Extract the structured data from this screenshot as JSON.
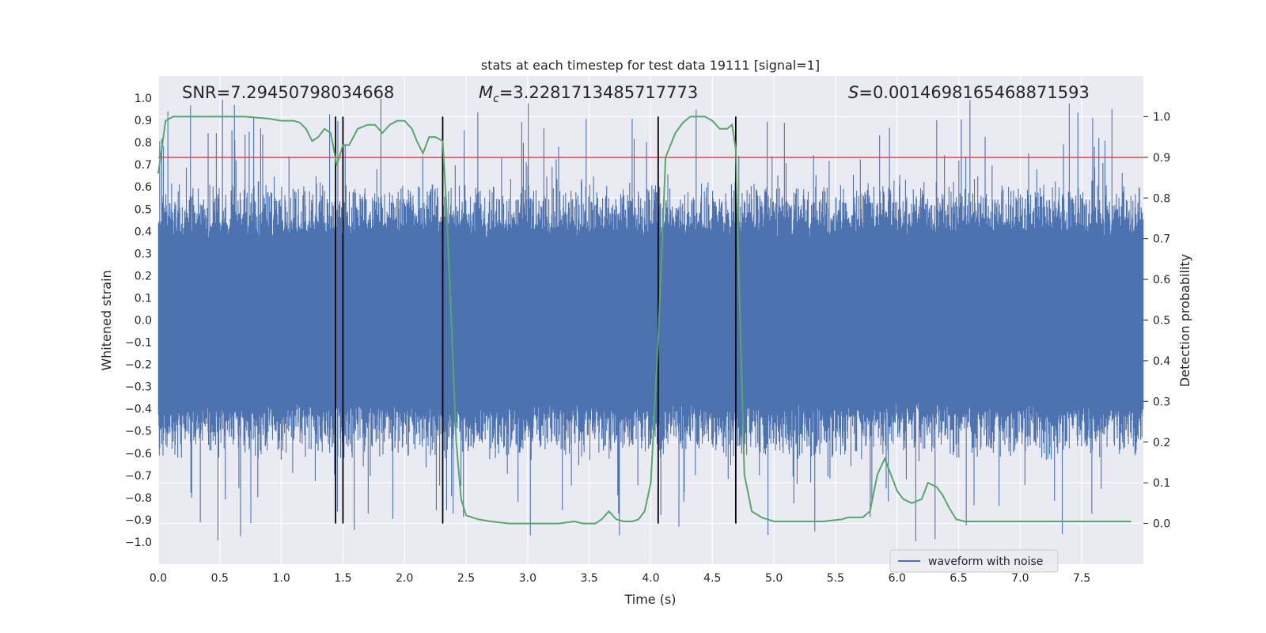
{
  "chart_data": {
    "type": "line",
    "title": "stats at each timestep for test data 19111 [signal=1]",
    "xlabel": "Time (s)",
    "ylabel_left": "Whitened strain",
    "ylabel_right": "Detection probability",
    "xlim": [
      0,
      8
    ],
    "ylim_left": [
      -1.1,
      1.1
    ],
    "ylim_right": [
      -0.1,
      1.1
    ],
    "grid": true,
    "legend": {
      "placement": "lower-right",
      "entries": [
        "waveform with noise"
      ]
    },
    "x_ticks": [
      "0.0",
      "0.5",
      "1.0",
      "1.5",
      "2.0",
      "2.5",
      "3.0",
      "3.5",
      "4.0",
      "4.5",
      "5.0",
      "5.5",
      "6.0",
      "6.5",
      "7.0",
      "7.5"
    ],
    "y_ticks_left": [
      "-1.0",
      "-0.9",
      "-0.8",
      "-0.7",
      "-0.6",
      "-0.5",
      "-0.4",
      "-0.3",
      "-0.2",
      "-0.1",
      "0.0",
      "0.1",
      "0.2",
      "0.3",
      "0.4",
      "0.5",
      "0.6",
      "0.7",
      "0.8",
      "0.9",
      "1.0"
    ],
    "y_ticks_right": [
      "0.0",
      "0.1",
      "0.2",
      "0.3",
      "0.4",
      "0.5",
      "0.6",
      "0.7",
      "0.8",
      "0.9",
      "1.0"
    ],
    "annotations": {
      "snr": "SNR=7.29450798034668",
      "mc_symbol": "M",
      "mc_sub": "c",
      "mc_value": "=3.2281713485717773",
      "s_symbol": "S",
      "s_value": "=0.0014698165468871593"
    },
    "threshold": 0.9,
    "vertical_lines": [
      1.44,
      1.5,
      2.31,
      4.06,
      4.69
    ],
    "series": [
      {
        "name": "waveform with noise",
        "style": "noise",
        "color": "#4c72b0",
        "description_envelope": {
          "core_abs": 0.4,
          "spike_max": 1.0
        }
      },
      {
        "style": "line",
        "axis": "right",
        "color": "#55a868",
        "x": [
          0.0,
          0.06,
          0.12,
          0.2,
          0.3,
          0.5,
          0.7,
          0.9,
          1.0,
          1.05,
          1.1,
          1.15,
          1.2,
          1.25,
          1.3,
          1.35,
          1.4,
          1.45,
          1.5,
          1.55,
          1.62,
          1.7,
          1.76,
          1.82,
          1.88,
          1.94,
          2.0,
          2.06,
          2.1,
          2.15,
          2.2,
          2.25,
          2.31,
          2.34,
          2.38,
          2.42,
          2.46,
          2.5,
          2.6,
          2.7,
          2.85,
          3.0,
          3.25,
          3.38,
          3.45,
          3.55,
          3.6,
          3.66,
          3.72,
          3.78,
          3.85,
          3.9,
          3.95,
          4.0,
          4.06,
          4.12,
          4.2,
          4.26,
          4.32,
          4.38,
          4.44,
          4.5,
          4.56,
          4.62,
          4.66,
          4.69,
          4.72,
          4.76,
          4.82,
          4.9,
          5.0,
          5.25,
          5.4,
          5.55,
          5.6,
          5.65,
          5.72,
          5.78,
          5.84,
          5.9,
          5.95,
          6.0,
          6.05,
          6.12,
          6.2,
          6.25,
          6.32,
          6.37,
          6.42,
          6.48,
          6.55,
          6.65,
          6.8,
          7.0,
          7.3,
          7.6,
          7.9
        ],
        "values": [
          0.86,
          0.99,
          1.0,
          1.0,
          1.0,
          1.0,
          1.0,
          0.995,
          0.99,
          0.99,
          0.99,
          0.985,
          0.97,
          0.94,
          0.95,
          0.97,
          0.96,
          0.88,
          0.93,
          0.93,
          0.97,
          0.98,
          0.98,
          0.96,
          0.98,
          0.99,
          0.99,
          0.97,
          0.94,
          0.91,
          0.95,
          0.95,
          0.94,
          0.78,
          0.5,
          0.2,
          0.06,
          0.02,
          0.01,
          0.005,
          0.0,
          0.0,
          0.0,
          0.005,
          0.0,
          0.0,
          0.01,
          0.03,
          0.01,
          0.005,
          0.005,
          0.01,
          0.03,
          0.1,
          0.45,
          0.9,
          0.96,
          0.985,
          1.0,
          1.0,
          1.0,
          0.99,
          0.97,
          0.97,
          0.98,
          0.92,
          0.56,
          0.12,
          0.03,
          0.015,
          0.005,
          0.005,
          0.005,
          0.01,
          0.015,
          0.015,
          0.015,
          0.03,
          0.12,
          0.16,
          0.12,
          0.08,
          0.06,
          0.05,
          0.06,
          0.1,
          0.09,
          0.07,
          0.04,
          0.01,
          0.005,
          0.005,
          0.005,
          0.005,
          0.005,
          0.005,
          0.005
        ]
      }
    ]
  }
}
